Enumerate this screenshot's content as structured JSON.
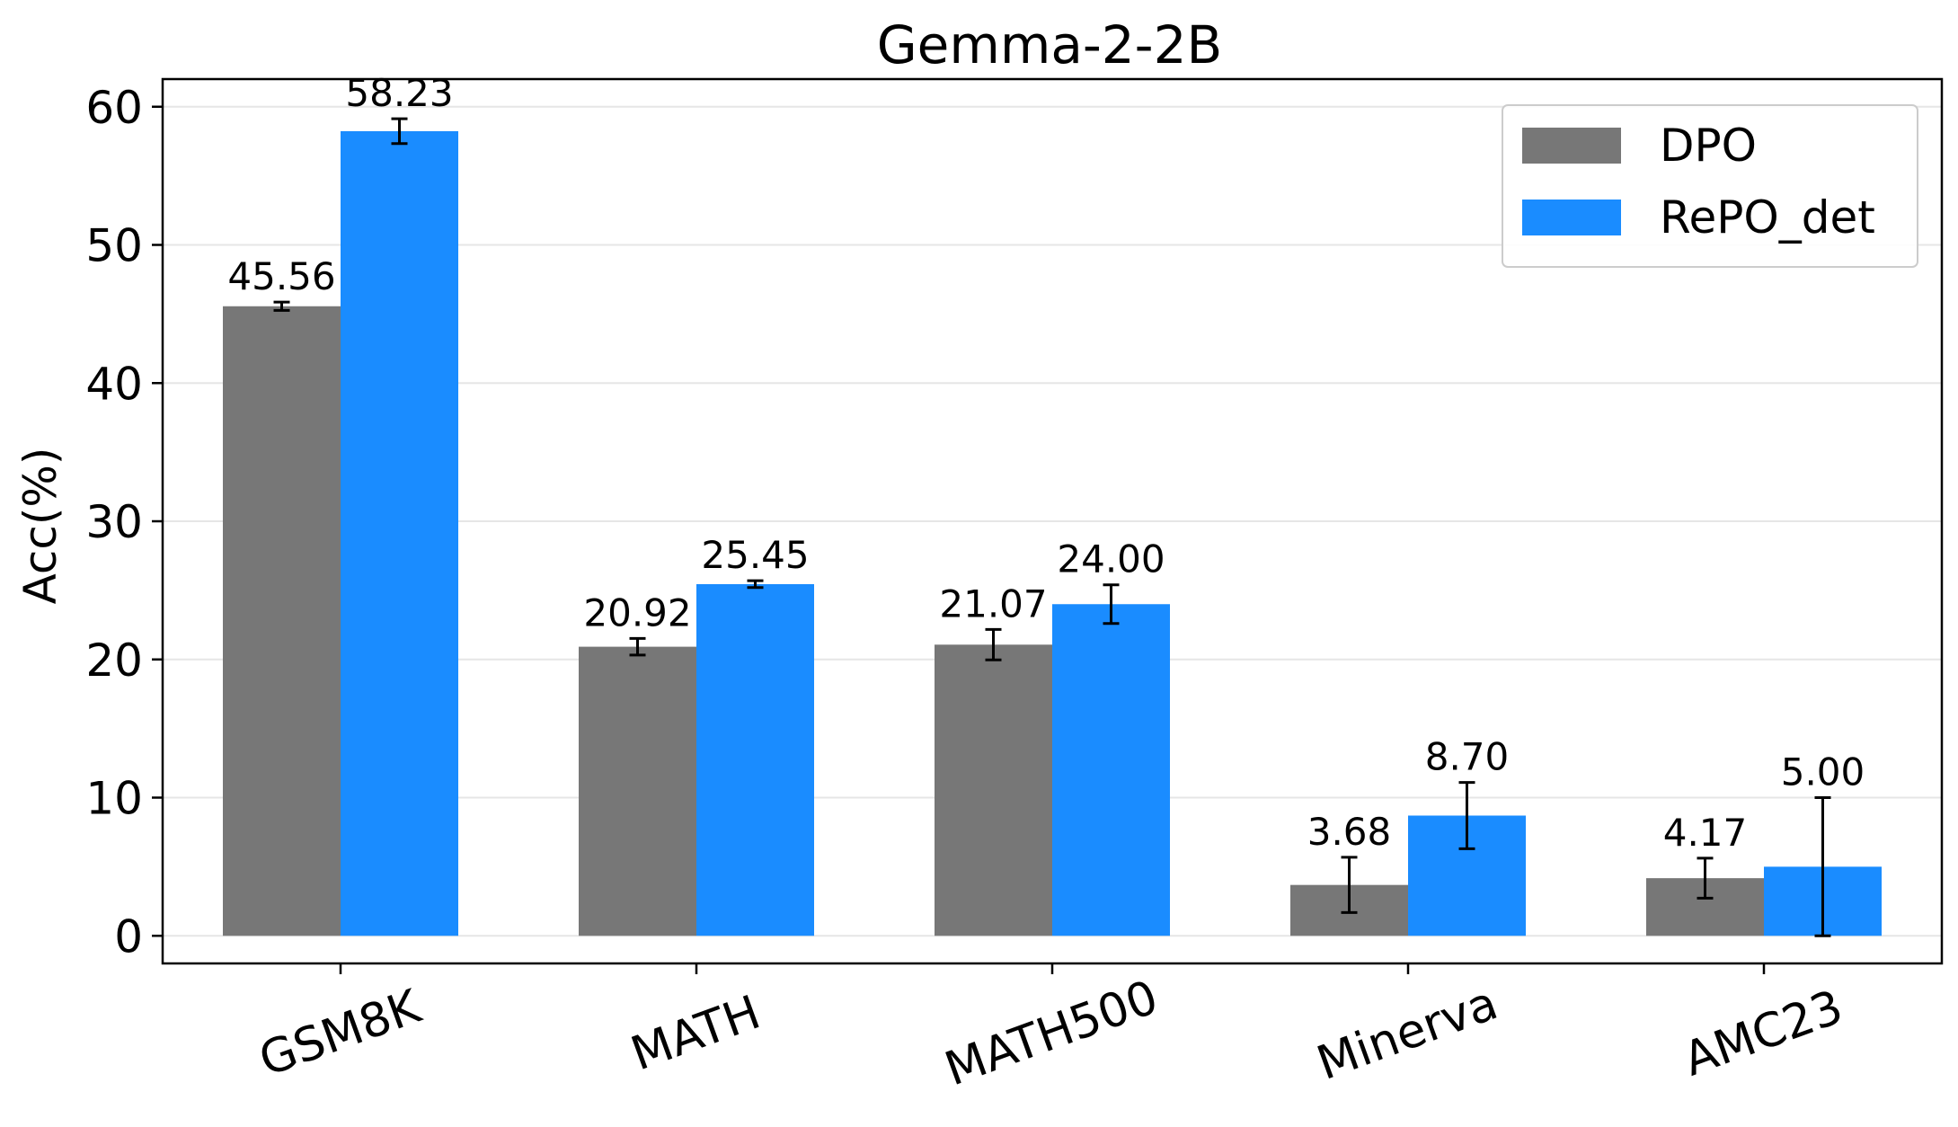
{
  "chart_data": {
    "type": "bar",
    "title": "Gemma-2-2B",
    "xlabel": "",
    "ylabel": "Acc(%)",
    "ylim": [
      -2,
      62
    ],
    "yticks": [
      0,
      10,
      20,
      30,
      40,
      50,
      60
    ],
    "grid": "horizontal",
    "legend_position": "top-right",
    "categories": [
      "GSM8K",
      "MATH",
      "MATH500",
      "Minerva",
      "AMC23"
    ],
    "series": [
      {
        "name": "DPO",
        "color": "#777777",
        "values": [
          45.56,
          20.92,
          21.07,
          3.68,
          4.17
        ],
        "errors": [
          0.3,
          0.6,
          1.1,
          2.0,
          1.45
        ],
        "value_labels": [
          "45.56",
          "20.92",
          "21.07",
          "3.68",
          "4.17"
        ]
      },
      {
        "name": "RePO_det",
        "color": "#1a8cff",
        "values": [
          58.23,
          25.45,
          24.0,
          8.7,
          5.0
        ],
        "errors": [
          0.9,
          0.25,
          1.4,
          2.4,
          5.0
        ],
        "value_labels": [
          "58.23",
          "25.45",
          "24.00",
          "8.70",
          "5.00"
        ]
      }
    ]
  }
}
